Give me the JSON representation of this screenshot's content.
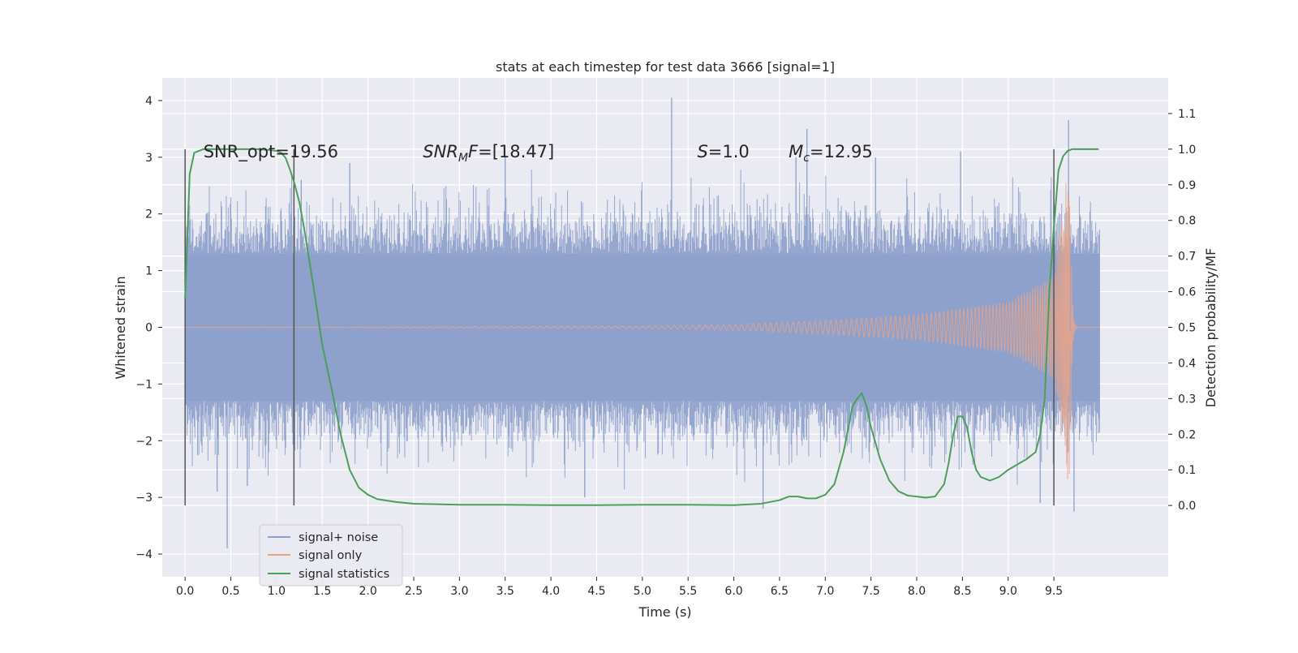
{
  "chart_data": {
    "type": "line",
    "title": "stats at each timestep for test data 3666 [signal=1]",
    "xlabel": "Time (s)",
    "ylabel_left": "Whitened strain",
    "ylabel_right": "Detection probability/MF",
    "xlim": [
      -0.25,
      10.75
    ],
    "ylim_left": [
      -4.4,
      4.4
    ],
    "ylim_right": [
      -0.2,
      1.2
    ],
    "xticks": [
      0.0,
      0.5,
      1.0,
      1.5,
      2.0,
      2.5,
      3.0,
      3.5,
      4.0,
      4.5,
      5.0,
      5.5,
      6.0,
      6.5,
      7.0,
      7.5,
      8.0,
      8.5,
      9.0,
      9.5
    ],
    "yticks_left": [
      -4,
      -3,
      -2,
      -1,
      0,
      1,
      2,
      3,
      4
    ],
    "yticks_right": [
      0.0,
      0.1,
      0.2,
      0.3,
      0.4,
      0.5,
      0.6,
      0.7,
      0.8,
      0.9,
      1.0,
      1.1
    ],
    "grid": true,
    "legend": {
      "placement": "lower-left",
      "entries": [
        {
          "label": "signal+ noise",
          "color": "#8da0cb"
        },
        {
          "label": "signal only",
          "color": "#e8a387"
        },
        {
          "label": "signal statistics",
          "color": "#4c9f5a"
        }
      ]
    },
    "annotations": [
      {
        "id": "snr-opt",
        "text": "SNR_opt=19.56",
        "x": 0.2,
        "y": 3.1
      },
      {
        "id": "snr-mf",
        "text": "SNR",
        "subscript": "M",
        "suffix": "F=[18.47]",
        "x": 2.6,
        "y": 3.1
      },
      {
        "id": "s",
        "text": "S",
        "suffix": "=1.0",
        "x": 5.6,
        "y": 3.1
      },
      {
        "id": "mc",
        "text": "M",
        "subscript": "c",
        "suffix": "=12.95",
        "x": 6.6,
        "y": 3.1
      }
    ],
    "vertical_markers": [
      0.0,
      1.19,
      9.5
    ],
    "marker_range_right": [
      0.0,
      1.0
    ],
    "series": [
      {
        "name": "signal+ noise",
        "axis": "left",
        "color": "#8da0cb",
        "t_range": [
          0.0,
          10.0
        ],
        "band_envelope": {
          "core_half_width": 1.3,
          "typical_peak": 2.0
        },
        "spikes": [
          {
            "t": 0.46,
            "y": -3.9
          },
          {
            "t": 0.35,
            "y": -2.9
          },
          {
            "t": 0.68,
            "y": -2.8
          },
          {
            "t": 1.27,
            "y": 2.6
          },
          {
            "t": 1.8,
            "y": 2.9
          },
          {
            "t": 3.5,
            "y": 3.0
          },
          {
            "t": 4.37,
            "y": -3.0
          },
          {
            "t": 5.32,
            "y": 4.05
          },
          {
            "t": 6.32,
            "y": -3.2
          },
          {
            "t": 6.68,
            "y": 3.0
          },
          {
            "t": 6.8,
            "y": 3.5
          },
          {
            "t": 7.55,
            "y": 3.0
          },
          {
            "t": 8.48,
            "y": 3.1
          },
          {
            "t": 9.35,
            "y": -3.1
          },
          {
            "t": 9.66,
            "y": 3.65
          },
          {
            "t": 9.72,
            "y": -3.25
          }
        ]
      },
      {
        "name": "signal only",
        "axis": "left",
        "color": "#e8a387",
        "t_range": [
          0.0,
          10.0
        ],
        "chirp_merger_time": 9.68,
        "amplitude_envelope": [
          {
            "t": 5.0,
            "a": 0.02
          },
          {
            "t": 6.0,
            "a": 0.05
          },
          {
            "t": 7.0,
            "a": 0.12
          },
          {
            "t": 8.0,
            "a": 0.22
          },
          {
            "t": 9.0,
            "a": 0.45
          },
          {
            "t": 9.5,
            "a": 0.9
          },
          {
            "t": 9.68,
            "a": 3.2
          }
        ]
      },
      {
        "name": "signal statistics",
        "axis": "right",
        "color": "#4c9f5a",
        "x": [
          0.0,
          0.05,
          0.1,
          0.15,
          0.2,
          0.3,
          0.4,
          0.5,
          0.6,
          0.7,
          0.8,
          0.9,
          1.0,
          1.05,
          1.1,
          1.15,
          1.2,
          1.25,
          1.3,
          1.35,
          1.4,
          1.5,
          1.6,
          1.7,
          1.8,
          1.9,
          2.0,
          2.1,
          2.3,
          2.5,
          3.0,
          3.5,
          4.0,
          4.5,
          5.0,
          5.5,
          6.0,
          6.3,
          6.5,
          6.6,
          6.7,
          6.8,
          6.9,
          7.0,
          7.1,
          7.2,
          7.3,
          7.35,
          7.4,
          7.45,
          7.5,
          7.6,
          7.7,
          7.8,
          7.9,
          8.0,
          8.1,
          8.2,
          8.3,
          8.35,
          8.4,
          8.45,
          8.5,
          8.55,
          8.6,
          8.65,
          8.7,
          8.8,
          8.9,
          9.0,
          9.1,
          9.2,
          9.3,
          9.35,
          9.4,
          9.45,
          9.5,
          9.55,
          9.6,
          9.65,
          9.7,
          9.8,
          9.9,
          9.99
        ],
        "y": [
          0.58,
          0.93,
          0.99,
          0.995,
          1.0,
          1.0,
          1.0,
          1.0,
          1.0,
          1.0,
          1.0,
          0.998,
          0.995,
          0.99,
          0.975,
          0.94,
          0.9,
          0.85,
          0.78,
          0.7,
          0.62,
          0.45,
          0.33,
          0.2,
          0.1,
          0.05,
          0.03,
          0.018,
          0.01,
          0.005,
          0.002,
          0.002,
          0.001,
          0.001,
          0.002,
          0.002,
          0.001,
          0.005,
          0.015,
          0.025,
          0.025,
          0.02,
          0.02,
          0.03,
          0.06,
          0.15,
          0.28,
          0.3,
          0.315,
          0.28,
          0.22,
          0.13,
          0.07,
          0.04,
          0.028,
          0.025,
          0.022,
          0.025,
          0.06,
          0.12,
          0.2,
          0.25,
          0.25,
          0.22,
          0.15,
          0.1,
          0.08,
          0.07,
          0.08,
          0.1,
          0.115,
          0.13,
          0.15,
          0.2,
          0.3,
          0.6,
          0.78,
          0.94,
          0.98,
          0.995,
          1.0,
          1.0,
          1.0,
          1.0
        ]
      }
    ]
  }
}
